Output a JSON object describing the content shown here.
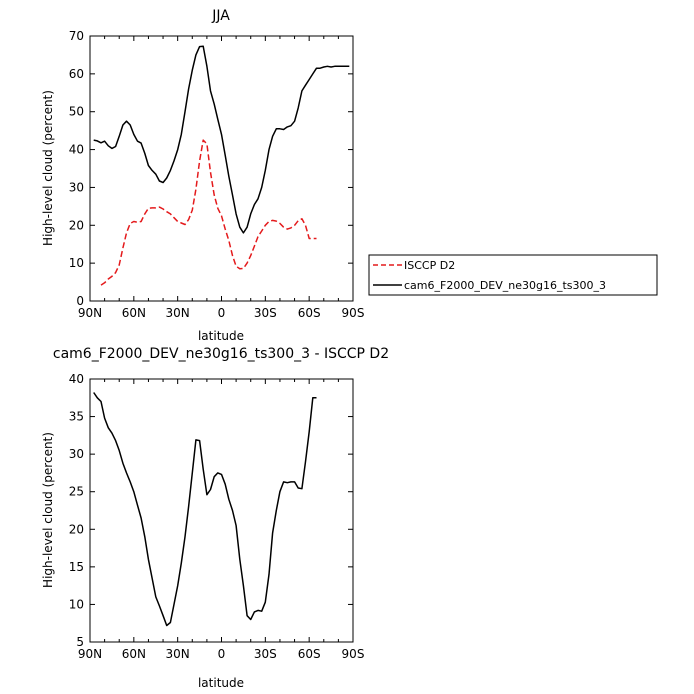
{
  "chart_data": [
    {
      "type": "line",
      "title": "JJA",
      "xlabel": "latitude",
      "ylabel": "High-level cloud (percent)",
      "xlim": [
        90,
        -90
      ],
      "ylim": [
        0,
        70
      ],
      "xticks": [
        90,
        60,
        30,
        0,
        -30,
        -60,
        -90
      ],
      "xtick_labels": [
        "90N",
        "60N",
        "30N",
        "0",
        "30S",
        "60S",
        "90S"
      ],
      "yticks": [
        0,
        10,
        20,
        30,
        40,
        50,
        60,
        70
      ],
      "ytick_labels": [
        "0",
        "10",
        "20",
        "30",
        "40",
        "50",
        "60",
        "70"
      ],
      "legend_position": "right",
      "series": [
        {
          "name": "ISCCP D2",
          "color": "#e41a1c",
          "dash": "dashed",
          "x": [
            82.5,
            80,
            77.5,
            75,
            72.5,
            70,
            67.5,
            65,
            62.5,
            60,
            57.5,
            55,
            52.5,
            50,
            47.5,
            45,
            42.5,
            40,
            37.5,
            35,
            32.5,
            30,
            27.5,
            25,
            22.5,
            20,
            17.5,
            15,
            12.5,
            10,
            7.5,
            5,
            2.5,
            0,
            -2.5,
            -5,
            -7.5,
            -10,
            -12.5,
            -15,
            -17.5,
            -20,
            -22.5,
            -25,
            -27.5,
            -30,
            -32.5,
            -35,
            -37.5,
            -40,
            -42.5,
            -45,
            -47.5,
            -50,
            -52.5,
            -55,
            -57.5,
            -60,
            -62.5,
            -65
          ],
          "y": [
            4.2,
            4.8,
            5.8,
            6.5,
            7.5,
            9.5,
            14,
            18,
            20.5,
            21,
            20.8,
            21,
            23,
            24.5,
            24.6,
            24.6,
            24.8,
            24.3,
            23.6,
            23,
            22,
            21,
            20.6,
            20.2,
            21.5,
            24,
            29.5,
            37,
            42.5,
            41.5,
            34,
            28,
            24.5,
            22.5,
            19,
            16,
            12,
            9.2,
            8.5,
            8.6,
            10,
            12,
            14.5,
            17,
            18.5,
            20,
            21,
            21.3,
            21.1,
            20.5,
            19.5,
            19,
            19.3,
            20,
            21.2,
            21.7,
            20,
            16.5,
            16.5,
            16.5
          ]
        },
        {
          "name": "cam6_F2000_DEV_ne30g16_ts300_3",
          "color": "#000000",
          "dash": "solid",
          "x": [
            87.5,
            85,
            82.5,
            80,
            77.5,
            75,
            72.5,
            70,
            67.5,
            65,
            62.5,
            60,
            57.5,
            55,
            52.5,
            50,
            47.5,
            45,
            42.5,
            40,
            37.5,
            35,
            32.5,
            30,
            27.5,
            25,
            22.5,
            20,
            17.5,
            15,
            12.5,
            10,
            7.5,
            5,
            2.5,
            0,
            -2.5,
            -5,
            -7.5,
            -10,
            -12.5,
            -15,
            -17.5,
            -20,
            -22.5,
            -25,
            -27.5,
            -30,
            -32.5,
            -35,
            -37.5,
            -40,
            -42.5,
            -45,
            -47.5,
            -50,
            -52.5,
            -55,
            -57.5,
            -60,
            -62.5,
            -65,
            -67.5,
            -70,
            -72.5,
            -75,
            -77.5,
            -80,
            -82.5,
            -85,
            -87.5
          ],
          "y": [
            42.5,
            42.3,
            41.8,
            42.2,
            41,
            40.3,
            40.8,
            43.5,
            46.5,
            47.5,
            46.5,
            44,
            42.2,
            41.7,
            39,
            35.8,
            34.5,
            33.5,
            31.7,
            31.3,
            32.5,
            34.5,
            37,
            40,
            44,
            50,
            56,
            61,
            65,
            67.2,
            67.3,
            62,
            55.5,
            52,
            48,
            44,
            38.5,
            33,
            28,
            23,
            19.5,
            18,
            19.5,
            23,
            25.5,
            27,
            30,
            34.5,
            40,
            43.5,
            45.5,
            45.5,
            45.3,
            46,
            46.3,
            47.5,
            51,
            55.5,
            57,
            58.5,
            60,
            61.5,
            61.5,
            61.8,
            62,
            61.8,
            62,
            62,
            62,
            62,
            62
          ]
        }
      ]
    },
    {
      "type": "line",
      "title": "cam6_F2000_DEV_ne30g16_ts300_3 - ISCCP D2",
      "xlabel": "latitude",
      "ylabel": "High-level cloud (percent)",
      "xlim": [
        90,
        -90
      ],
      "ylim": [
        5,
        40
      ],
      "xticks": [
        90,
        60,
        30,
        0,
        -30,
        -60,
        -90
      ],
      "xtick_labels": [
        "90N",
        "60N",
        "30N",
        "0",
        "30S",
        "60S",
        "90S"
      ],
      "yticks": [
        5,
        10,
        15,
        20,
        25,
        30,
        35,
        40
      ],
      "ytick_labels": [
        "5",
        "10",
        "15",
        "20",
        "25",
        "30",
        "35",
        "40"
      ],
      "series": [
        {
          "name": "",
          "color": "#000000",
          "dash": "solid",
          "x": [
            87.5,
            85,
            82.5,
            80,
            77.5,
            75,
            72.5,
            70,
            67.5,
            65,
            62.5,
            60,
            57.5,
            55,
            52.5,
            50,
            47.5,
            45,
            42.5,
            40,
            37.5,
            35,
            32.5,
            30,
            27.5,
            25,
            22.5,
            20,
            17.5,
            15,
            12.5,
            10,
            7.5,
            5,
            2.5,
            0,
            -2.5,
            -5,
            -7.5,
            -10,
            -12.5,
            -15,
            -17.5,
            -20,
            -22.5,
            -25,
            -27.5,
            -30,
            -32.5,
            -35,
            -37.5,
            -40,
            -42.5,
            -45,
            -47.5,
            -50,
            -52.5,
            -55,
            -57.5,
            -60,
            -62.5,
            -65
          ],
          "y": [
            38.2,
            37.5,
            37,
            34.8,
            33.5,
            32.8,
            31.8,
            30.5,
            28.8,
            27.5,
            26.3,
            25,
            23.2,
            21.5,
            19,
            16,
            13.5,
            11,
            9.8,
            8.5,
            7.2,
            7.6,
            10,
            12.5,
            15.5,
            19,
            23,
            27.5,
            31.9,
            31.8,
            28,
            24.6,
            25.3,
            27,
            27.5,
            27.3,
            26,
            24,
            22.5,
            20.5,
            16,
            12.5,
            8.5,
            8,
            9,
            9.2,
            9.1,
            10.3,
            14,
            19.5,
            22.5,
            25,
            26.3,
            26.2,
            26.3,
            26.3,
            25.5,
            25.4,
            29,
            33,
            37.5,
            37.5
          ]
        }
      ]
    }
  ]
}
